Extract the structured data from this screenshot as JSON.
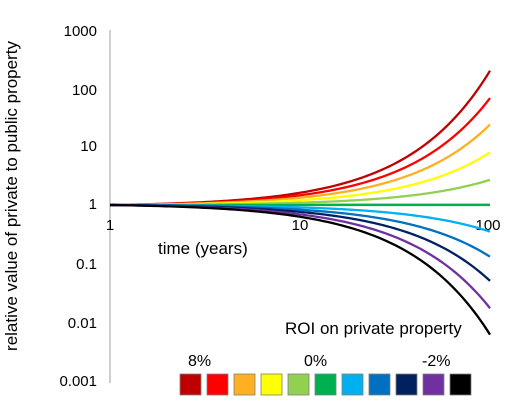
{
  "chart_data": {
    "type": "line",
    "xlabel": "time (years)",
    "ylabel": "relative value of private to public property",
    "x_scale": "log",
    "y_scale": "log",
    "xlim": [
      1,
      100
    ],
    "ylim": [
      0.001,
      1000
    ],
    "x_ticks": [
      "1",
      "10",
      "100"
    ],
    "y_ticks": [
      "1000",
      "100",
      "10",
      "1",
      "0.1",
      "0.01",
      "0.001"
    ],
    "grid": false,
    "x": [
      1,
      100
    ],
    "series": [
      {
        "color": "#c00000",
        "values": [
          1,
          200
        ]
      },
      {
        "color": "#ff0000",
        "values": [
          1,
          68
        ]
      },
      {
        "color": "#ffb020",
        "values": [
          1,
          24
        ]
      },
      {
        "color": "#ffff00",
        "values": [
          1,
          8
        ]
      },
      {
        "color": "#92d050",
        "values": [
          1,
          2.7
        ]
      },
      {
        "color": "#00b050",
        "values": [
          1,
          1
        ]
      },
      {
        "color": "#00b0f0",
        "values": [
          1,
          0.35
        ]
      },
      {
        "color": "#0070c0",
        "values": [
          1,
          0.13
        ]
      },
      {
        "color": "#002060",
        "values": [
          1,
          0.05
        ]
      },
      {
        "color": "#7030a0",
        "values": [
          1,
          0.017
        ]
      },
      {
        "color": "#000000",
        "values": [
          1,
          0.006
        ]
      }
    ],
    "legend": {
      "title": "ROI on private property",
      "labels": [
        "8%",
        "0%",
        "-2%"
      ],
      "colors": [
        "#c00000",
        "#ff0000",
        "#ffb020",
        "#ffff00",
        "#92d050",
        "#00b050",
        "#00b0f0",
        "#0070c0",
        "#002060",
        "#7030a0",
        "#000000"
      ]
    }
  }
}
